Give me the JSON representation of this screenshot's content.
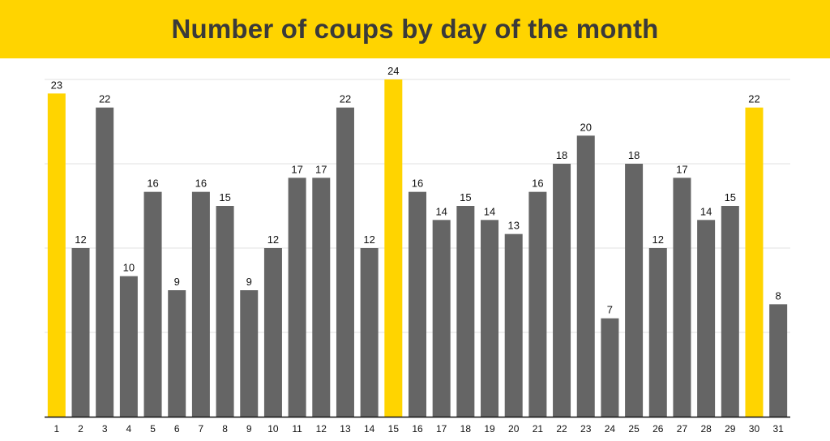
{
  "colors": {
    "accent": "#FFD400",
    "bar": "#656565",
    "title_text": "#3a3a3a",
    "grid": "#e2e2e2",
    "axis": "#111111",
    "text": "#111111"
  },
  "chart_data": {
    "type": "bar",
    "title": "Number of coups by day of the month",
    "xlabel": "",
    "ylabel": "",
    "categories": [
      "1",
      "2",
      "3",
      "4",
      "5",
      "6",
      "7",
      "8",
      "9",
      "10",
      "11",
      "12",
      "13",
      "14",
      "15",
      "16",
      "17",
      "18",
      "19",
      "20",
      "21",
      "22",
      "23",
      "24",
      "25",
      "26",
      "27",
      "28",
      "29",
      "30",
      "31"
    ],
    "values": [
      23,
      12,
      22,
      10,
      16,
      9,
      16,
      15,
      9,
      12,
      17,
      17,
      22,
      12,
      24,
      16,
      14,
      15,
      14,
      13,
      16,
      18,
      20,
      7,
      18,
      12,
      17,
      14,
      15,
      22,
      8
    ],
    "highlighted_categories": [
      "1",
      "15",
      "30"
    ],
    "ylim": [
      0,
      24
    ],
    "grid": true,
    "data_labels": true
  }
}
